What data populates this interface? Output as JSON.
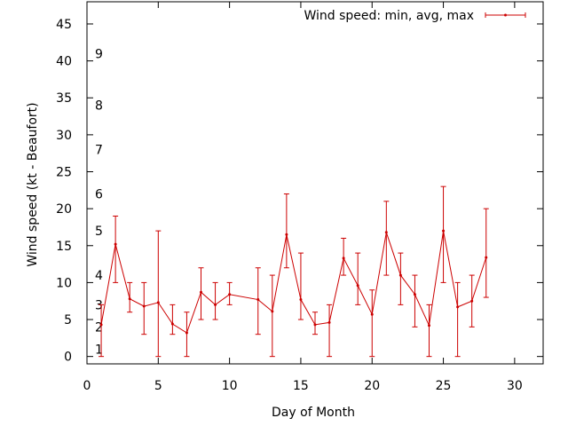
{
  "chart_data": {
    "type": "errorbar-line",
    "xlabel": "Day of Month",
    "ylabel": "Wind speed (kt - Beaufort)",
    "xlim": [
      0,
      32
    ],
    "ylim": [
      -1,
      48
    ],
    "xticks": [
      0,
      5,
      10,
      15,
      20,
      25,
      30
    ],
    "xtick_labels": [
      "0",
      "5",
      "10",
      "15",
      "20",
      "25",
      "30"
    ],
    "yticks": [
      0,
      5,
      10,
      15,
      20,
      25,
      30,
      35,
      40,
      45
    ],
    "ytick_labels": [
      "0",
      "5",
      "10",
      "15",
      "20",
      "25",
      "30",
      "35",
      "40",
      "45"
    ],
    "beaufort_marks": [
      {
        "label": "1",
        "y": 1
      },
      {
        "label": "2",
        "y": 4
      },
      {
        "label": "3",
        "y": 7
      },
      {
        "label": "4",
        "y": 11
      },
      {
        "label": "5",
        "y": 17
      },
      {
        "label": "6",
        "y": 22
      },
      {
        "label": "7",
        "y": 28
      },
      {
        "label": "8",
        "y": 34
      },
      {
        "label": "9",
        "y": 41
      }
    ],
    "legend": {
      "label": "Wind speed: min, avg, max",
      "position": "top-right"
    },
    "color": "#cc0000",
    "series": [
      {
        "name": "Wind speed: min, avg, max",
        "x": [
          1,
          2,
          3,
          4,
          5,
          6,
          7,
          8,
          9,
          10,
          12,
          13,
          14,
          15,
          16,
          17,
          18,
          19,
          20,
          21,
          22,
          23,
          24,
          25,
          26,
          27,
          28
        ],
        "avg": [
          4.3,
          15.2,
          7.8,
          6.8,
          7.3,
          4.4,
          3.2,
          8.7,
          7.0,
          8.4,
          7.7,
          6.1,
          16.5,
          7.7,
          4.3,
          4.6,
          13.3,
          9.6,
          5.7,
          16.8,
          11.0,
          8.4,
          4.2,
          17.0,
          6.7,
          7.5,
          13.4
        ],
        "min": [
          0,
          10,
          6,
          3,
          0,
          3,
          0,
          5,
          5,
          7,
          3,
          0,
          12,
          5,
          3,
          0,
          11,
          7,
          0,
          11,
          7,
          4,
          0,
          10,
          0,
          4,
          8
        ],
        "max": [
          7,
          19,
          10,
          10,
          17,
          7,
          6,
          12,
          10,
          10,
          12,
          11,
          22,
          14,
          6,
          7,
          16,
          14,
          9,
          21,
          14,
          11,
          7,
          23,
          10,
          11,
          20
        ]
      }
    ]
  }
}
